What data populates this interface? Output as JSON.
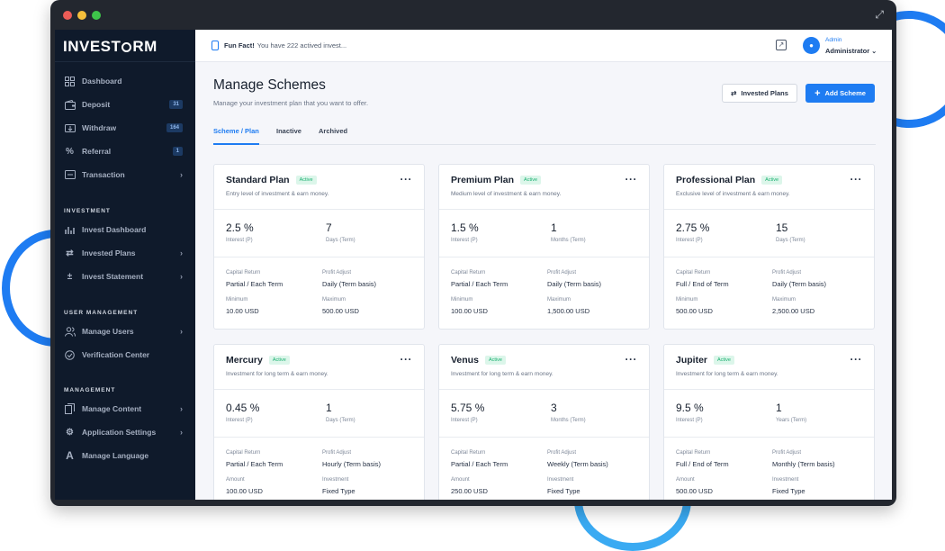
{
  "window": {
    "dots": [
      "#ec5c57",
      "#f5bf3b",
      "#3ec44a"
    ]
  },
  "brand": {
    "part1": "INVEST",
    "part2": "RM"
  },
  "sidebar": {
    "items": [
      {
        "label": "Dashboard",
        "icon": "grid-icon"
      },
      {
        "label": "Deposit",
        "icon": "wallet-icon",
        "badge": "31"
      },
      {
        "label": "Withdraw",
        "icon": "withdraw-icon",
        "badge": "164"
      },
      {
        "label": "Referral",
        "icon": "percent-icon",
        "badge": "1"
      },
      {
        "label": "Transaction",
        "icon": "transaction-icon",
        "chevron": "›"
      }
    ],
    "investment": {
      "title": "INVESTMENT",
      "items": [
        {
          "label": "Invest Dashboard",
          "icon": "chart-icon"
        },
        {
          "label": "Invested Plans",
          "icon": "exchange-icon",
          "chevron": "›"
        },
        {
          "label": "Invest Statement",
          "icon": "calc-icon",
          "chevron": "›"
        }
      ]
    },
    "users": {
      "title": "USER MANAGEMENT",
      "items": [
        {
          "label": "Manage Users",
          "icon": "users-icon",
          "chevron": "›"
        },
        {
          "label": "Verification Center",
          "icon": "check-circle-icon"
        }
      ]
    },
    "management": {
      "title": "MANAGEMENT",
      "items": [
        {
          "label": "Manage Content",
          "icon": "content-icon",
          "chevron": "›"
        },
        {
          "label": "Application Settings",
          "icon": "settings-icon",
          "chevron": "›"
        },
        {
          "label": "Manage Language",
          "icon": "language-icon"
        }
      ]
    }
  },
  "topbar": {
    "fun_fact_label": "Fun Fact!",
    "fun_fact_text": "You have 222 actived invest...",
    "user_role": "Admin",
    "user_name": "Administrator"
  },
  "page": {
    "title": "Manage Schemes",
    "subtitle": "Manage your investment plan that you want to offer.",
    "invested_plans_button": "Invested Plans",
    "add_scheme_button": "Add Scheme",
    "tabs": [
      "Scheme / Plan",
      "Inactive",
      "Archived"
    ]
  },
  "plans": [
    {
      "name": "Standard Plan",
      "status": "Active",
      "desc": "Entry level of investment & earn money.",
      "interest": "2.5 %",
      "interest_label": "Interest (P)",
      "term": "7",
      "term_label": "Days (Term)",
      "l1": "Capital Return",
      "v1": "Partial / Each Term",
      "l2": "Profit Adjust",
      "v2": "Daily (Term basis)",
      "l3": "Minimum",
      "v3": "10.00 USD",
      "l4": "Maximum",
      "v4": "500.00 USD"
    },
    {
      "name": "Premium Plan",
      "status": "Active",
      "desc": "Medium level of investment & earn money.",
      "interest": "1.5 %",
      "interest_label": "Interest (P)",
      "term": "1",
      "term_label": "Months (Term)",
      "l1": "Capital Return",
      "v1": "Partial / Each Term",
      "l2": "Profit Adjust",
      "v2": "Daily (Term basis)",
      "l3": "Minimum",
      "v3": "100.00 USD",
      "l4": "Maximum",
      "v4": "1,500.00 USD"
    },
    {
      "name": "Professional Plan",
      "status": "Active",
      "desc": "Exclusive level of investment & earn money.",
      "interest": "2.75 %",
      "interest_label": "Interest (P)",
      "term": "15",
      "term_label": "Days (Term)",
      "l1": "Capital Return",
      "v1": "Full / End of Term",
      "l2": "Profit Adjust",
      "v2": "Daily (Term basis)",
      "l3": "Minimum",
      "v3": "500.00 USD",
      "l4": "Maximum",
      "v4": "2,500.00 USD"
    },
    {
      "name": "Mercury",
      "status": "Active",
      "desc": "Investment for long term & earn money.",
      "interest": "0.45 %",
      "interest_label": "Interest (P)",
      "term": "1",
      "term_label": "Days (Term)",
      "l1": "Capital Return",
      "v1": "Partial / Each Term",
      "l2": "Profit Adjust",
      "v2": "Hourly (Term basis)",
      "l3": "Amount",
      "v3": "100.00 USD",
      "l4": "Investment",
      "v4": "Fixed Type"
    },
    {
      "name": "Venus",
      "status": "Active",
      "desc": "Investment for long term & earn money.",
      "interest": "5.75 %",
      "interest_label": "Interest (P)",
      "term": "3",
      "term_label": "Months (Term)",
      "l1": "Capital Return",
      "v1": "Partial / Each Term",
      "l2": "Profit Adjust",
      "v2": "Weekly (Term basis)",
      "l3": "Amount",
      "v3": "250.00 USD",
      "l4": "Investment",
      "v4": "Fixed Type"
    },
    {
      "name": "Jupiter",
      "status": "Active",
      "desc": "Investment for long term & earn money.",
      "interest": "9.5 %",
      "interest_label": "Interest (P)",
      "term": "1",
      "term_label": "Years (Term)",
      "l1": "Capital Return",
      "v1": "Full / End of Term",
      "l2": "Profit Adjust",
      "v2": "Monthly (Term basis)",
      "l3": "Amount",
      "v3": "500.00 USD",
      "l4": "Investment",
      "v4": "Fixed Type"
    }
  ]
}
